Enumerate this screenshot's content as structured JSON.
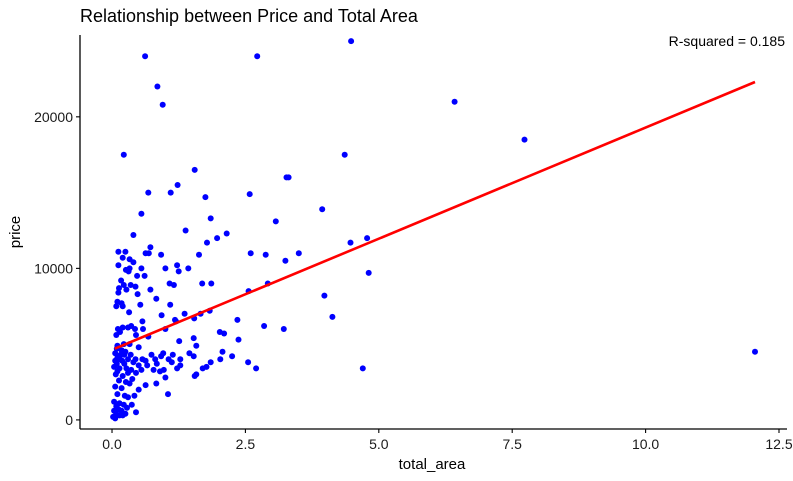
{
  "chart_data": {
    "type": "scatter",
    "title": "Relationship between Price and Total Area",
    "xlabel": "total_area",
    "ylabel": "price",
    "annotation": "R-squared = 0.185",
    "xlim": [
      -0.6,
      12.65
    ],
    "ylim": [
      -600,
      25400
    ],
    "x_ticks": [
      0.0,
      2.5,
      5.0,
      7.5,
      10.0,
      12.5
    ],
    "x_tick_labels": [
      "0.0",
      "2.5",
      "5.0",
      "7.5",
      "10.0",
      "12.5"
    ],
    "y_ticks": [
      0,
      10000,
      20000
    ],
    "y_tick_labels": [
      "0",
      "10000",
      "20000"
    ],
    "grid": false,
    "colors": {
      "points": "#0000ff",
      "trend": "#ff0000",
      "axis": "#000000"
    },
    "trend_line": {
      "x": [
        0.05,
        12.05
      ],
      "y": [
        4700,
        22300
      ]
    },
    "points": [
      [
        0.62,
        24000
      ],
      [
        2.72,
        24000
      ],
      [
        4.48,
        25000
      ],
      [
        0.85,
        22000
      ],
      [
        0.95,
        20800
      ],
      [
        6.42,
        21000
      ],
      [
        7.73,
        18500
      ],
      [
        0.22,
        17500
      ],
      [
        4.36,
        17500
      ],
      [
        1.55,
        16500
      ],
      [
        3.27,
        16000
      ],
      [
        3.31,
        16000
      ],
      [
        1.23,
        15500
      ],
      [
        0.68,
        15000
      ],
      [
        1.1,
        15000
      ],
      [
        2.58,
        14900
      ],
      [
        1.75,
        14700
      ],
      [
        3.94,
        13900
      ],
      [
        0.55,
        13600
      ],
      [
        1.85,
        13300
      ],
      [
        3.07,
        13100
      ],
      [
        1.38,
        12500
      ],
      [
        2.15,
        12300
      ],
      [
        0.4,
        12200
      ],
      [
        1.97,
        12000
      ],
      [
        4.78,
        12000
      ],
      [
        4.47,
        11700
      ],
      [
        1.78,
        11700
      ],
      [
        0.72,
        11400
      ],
      [
        0.12,
        11100
      ],
      [
        0.25,
        11100
      ],
      [
        0.63,
        11000
      ],
      [
        0.69,
        11000
      ],
      [
        2.6,
        11000
      ],
      [
        2.88,
        10900
      ],
      [
        3.5,
        11000
      ],
      [
        0.92,
        10900
      ],
      [
        1.63,
        10900
      ],
      [
        0.2,
        10700
      ],
      [
        0.33,
        10600
      ],
      [
        0.4,
        10400
      ],
      [
        1.22,
        10200
      ],
      [
        0.12,
        10200
      ],
      [
        3.25,
        10500
      ],
      [
        0.33,
        10000
      ],
      [
        0.55,
        10000
      ],
      [
        1.0,
        10000
      ],
      [
        1.43,
        10000
      ],
      [
        0.26,
        9900
      ],
      [
        1.25,
        9800
      ],
      [
        0.31,
        9800
      ],
      [
        4.81,
        9700
      ],
      [
        0.47,
        9500
      ],
      [
        0.61,
        9500
      ],
      [
        0.17,
        9200
      ],
      [
        1.08,
        9000
      ],
      [
        2.92,
        9000
      ],
      [
        0.22,
        8900
      ],
      [
        0.35,
        8900
      ],
      [
        0.44,
        8800
      ],
      [
        1.69,
        9000
      ],
      [
        1.86,
        9000
      ],
      [
        1.16,
        8900
      ],
      [
        0.13,
        8700
      ],
      [
        0.27,
        8600
      ],
      [
        0.72,
        8600
      ],
      [
        0.12,
        8400
      ],
      [
        0.48,
        8300
      ],
      [
        2.56,
        8500
      ],
      [
        3.98,
        8200
      ],
      [
        0.83,
        8000
      ],
      [
        0.1,
        7800
      ],
      [
        0.18,
        7700
      ],
      [
        0.53,
        7600
      ],
      [
        1.09,
        7600
      ],
      [
        0.08,
        7500
      ],
      [
        0.2,
        7500
      ],
      [
        1.83,
        7200
      ],
      [
        0.32,
        7100
      ],
      [
        1.66,
        7000
      ],
      [
        1.36,
        7000
      ],
      [
        1.54,
        6700
      ],
      [
        0.93,
        6900
      ],
      [
        1.18,
        6600
      ],
      [
        2.35,
        6600
      ],
      [
        0.57,
        6500
      ],
      [
        1.2,
        6500
      ],
      [
        4.13,
        6800
      ],
      [
        0.36,
        6200
      ],
      [
        0.2,
        6100
      ],
      [
        0.3,
        6100
      ],
      [
        0.11,
        6000
      ],
      [
        0.43,
        6000
      ],
      [
        0.58,
        6000
      ],
      [
        1.0,
        6000
      ],
      [
        2.85,
        6200
      ],
      [
        3.22,
        6000
      ],
      [
        2.02,
        5800
      ],
      [
        0.15,
        5800
      ],
      [
        0.08,
        5600
      ],
      [
        0.45,
        5600
      ],
      [
        0.68,
        5500
      ],
      [
        1.26,
        5200
      ],
      [
        1.53,
        5400
      ],
      [
        2.1,
        5700
      ],
      [
        2.37,
        5300
      ],
      [
        0.22,
        5000
      ],
      [
        0.33,
        5000
      ],
      [
        0.1,
        4900
      ],
      [
        0.5,
        4800
      ],
      [
        1.58,
        4900
      ],
      [
        0.09,
        4700
      ],
      [
        0.18,
        4600
      ],
      [
        0.25,
        4500
      ],
      [
        1.45,
        4400
      ],
      [
        1.14,
        4300
      ],
      [
        2.07,
        4500
      ],
      [
        12.05,
        4500
      ],
      [
        0.06,
        4400
      ],
      [
        0.16,
        4300
      ],
      [
        0.23,
        4300
      ],
      [
        0.35,
        4300
      ],
      [
        0.74,
        4300
      ],
      [
        0.92,
        4200
      ],
      [
        0.96,
        4400
      ],
      [
        1.53,
        4200
      ],
      [
        2.25,
        4200
      ],
      [
        0.1,
        4100
      ],
      [
        0.15,
        4000
      ],
      [
        0.3,
        4000
      ],
      [
        0.44,
        4000
      ],
      [
        0.57,
        4000
      ],
      [
        0.81,
        4000
      ],
      [
        1.06,
        4000
      ],
      [
        1.28,
        4000
      ],
      [
        2.03,
        4000
      ],
      [
        0.06,
        3900
      ],
      [
        0.19,
        3900
      ],
      [
        0.4,
        3800
      ],
      [
        0.63,
        3900
      ],
      [
        0.84,
        3700
      ],
      [
        1.12,
        3800
      ],
      [
        1.85,
        3800
      ],
      [
        2.55,
        3800
      ],
      [
        0.09,
        3700
      ],
      [
        0.23,
        3700
      ],
      [
        0.5,
        3600
      ],
      [
        0.66,
        3600
      ],
      [
        1.28,
        3600
      ],
      [
        1.77,
        3500
      ],
      [
        4.7,
        3400
      ],
      [
        2.7,
        3400
      ],
      [
        0.04,
        3500
      ],
      [
        0.14,
        3400
      ],
      [
        0.27,
        3400
      ],
      [
        0.36,
        3300
      ],
      [
        0.55,
        3300
      ],
      [
        0.78,
        3300
      ],
      [
        0.97,
        3300
      ],
      [
        1.22,
        3400
      ],
      [
        1.7,
        3400
      ],
      [
        0.1,
        3200
      ],
      [
        0.3,
        3100
      ],
      [
        0.45,
        3100
      ],
      [
        0.9,
        3200
      ],
      [
        1.58,
        3000
      ],
      [
        0.07,
        3000
      ],
      [
        0.2,
        2900
      ],
      [
        0.38,
        2700
      ],
      [
        1.0,
        2800
      ],
      [
        1.55,
        2900
      ],
      [
        0.13,
        2600
      ],
      [
        0.26,
        2500
      ],
      [
        0.63,
        2300
      ],
      [
        0.33,
        2400
      ],
      [
        0.83,
        2400
      ],
      [
        0.06,
        2200
      ],
      [
        0.18,
        2100
      ],
      [
        0.5,
        2000
      ],
      [
        0.1,
        1700
      ],
      [
        0.24,
        1600
      ],
      [
        0.42,
        1600
      ],
      [
        1.05,
        1700
      ],
      [
        0.3,
        1500
      ],
      [
        0.04,
        1200
      ],
      [
        0.14,
        1100
      ],
      [
        0.22,
        1000
      ],
      [
        0.37,
        1000
      ],
      [
        0.08,
        900
      ],
      [
        0.28,
        800
      ],
      [
        0.12,
        700
      ],
      [
        0.04,
        600
      ],
      [
        0.18,
        600
      ],
      [
        0.08,
        400
      ],
      [
        0.25,
        400
      ],
      [
        0.14,
        300
      ],
      [
        0.02,
        200
      ],
      [
        0.06,
        100
      ],
      [
        0.2,
        300
      ],
      [
        0.45,
        500
      ]
    ]
  }
}
